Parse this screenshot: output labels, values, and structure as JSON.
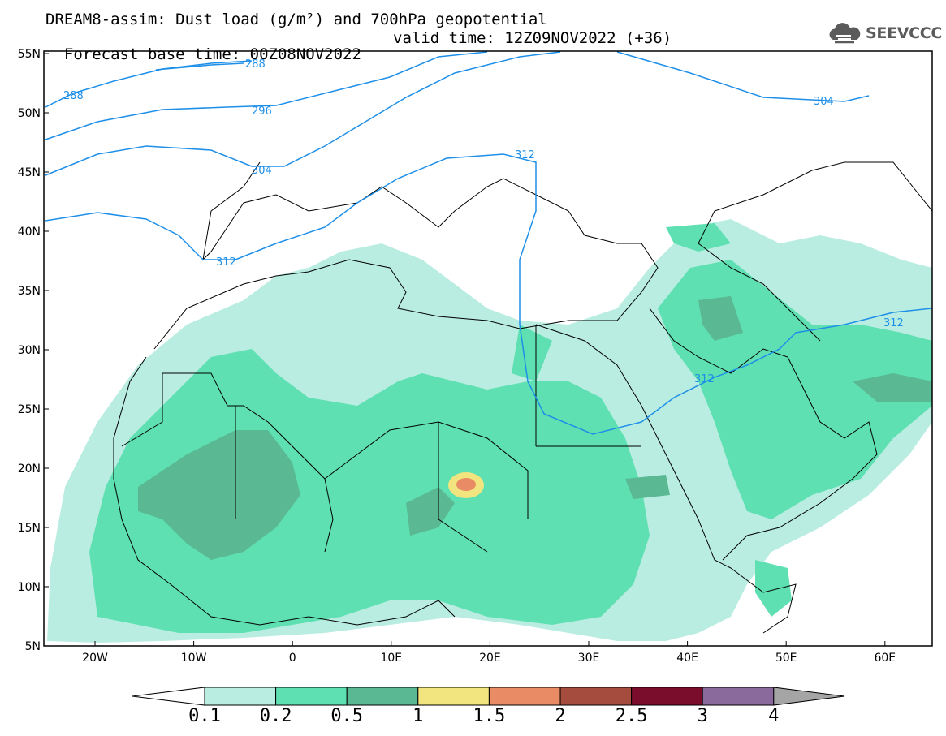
{
  "title": {
    "line1": "DREAM8-assim: Dust load (g/m²) and 700hPa geopotential",
    "line2_base": "Forecast base time: 00Z08NOV2022",
    "line2_valid": "valid time: 12Z09NOV2022 (+36)"
  },
  "logo": {
    "text": "SEEVCCC",
    "icon": "cloud-icon"
  },
  "map": {
    "lat_labels": [
      "55N",
      "50N",
      "45N",
      "40N",
      "35N",
      "30N",
      "25N",
      "20N",
      "15N",
      "10N",
      "5N"
    ],
    "lon_labels": [
      "20W",
      "10W",
      "0",
      "10E",
      "20E",
      "30E",
      "40E",
      "50E",
      "60E"
    ],
    "contour_labels": [
      "288",
      "288",
      "296",
      "304",
      "304",
      "312",
      "312",
      "312",
      "312"
    ],
    "contour_color": "#1e8fe8"
  },
  "colorbar": {
    "labels": [
      "0.1",
      "0.2",
      "0.5",
      "1",
      "1.5",
      "2",
      "2.5",
      "3",
      "4"
    ],
    "colors": [
      "#b9ede1",
      "#5ee0b2",
      "#5ab892",
      "#f2e47e",
      "#e98b65",
      "#a54c3e",
      "#7b0d2c",
      "#8a6a9c",
      "#a5a5a5"
    ]
  }
}
